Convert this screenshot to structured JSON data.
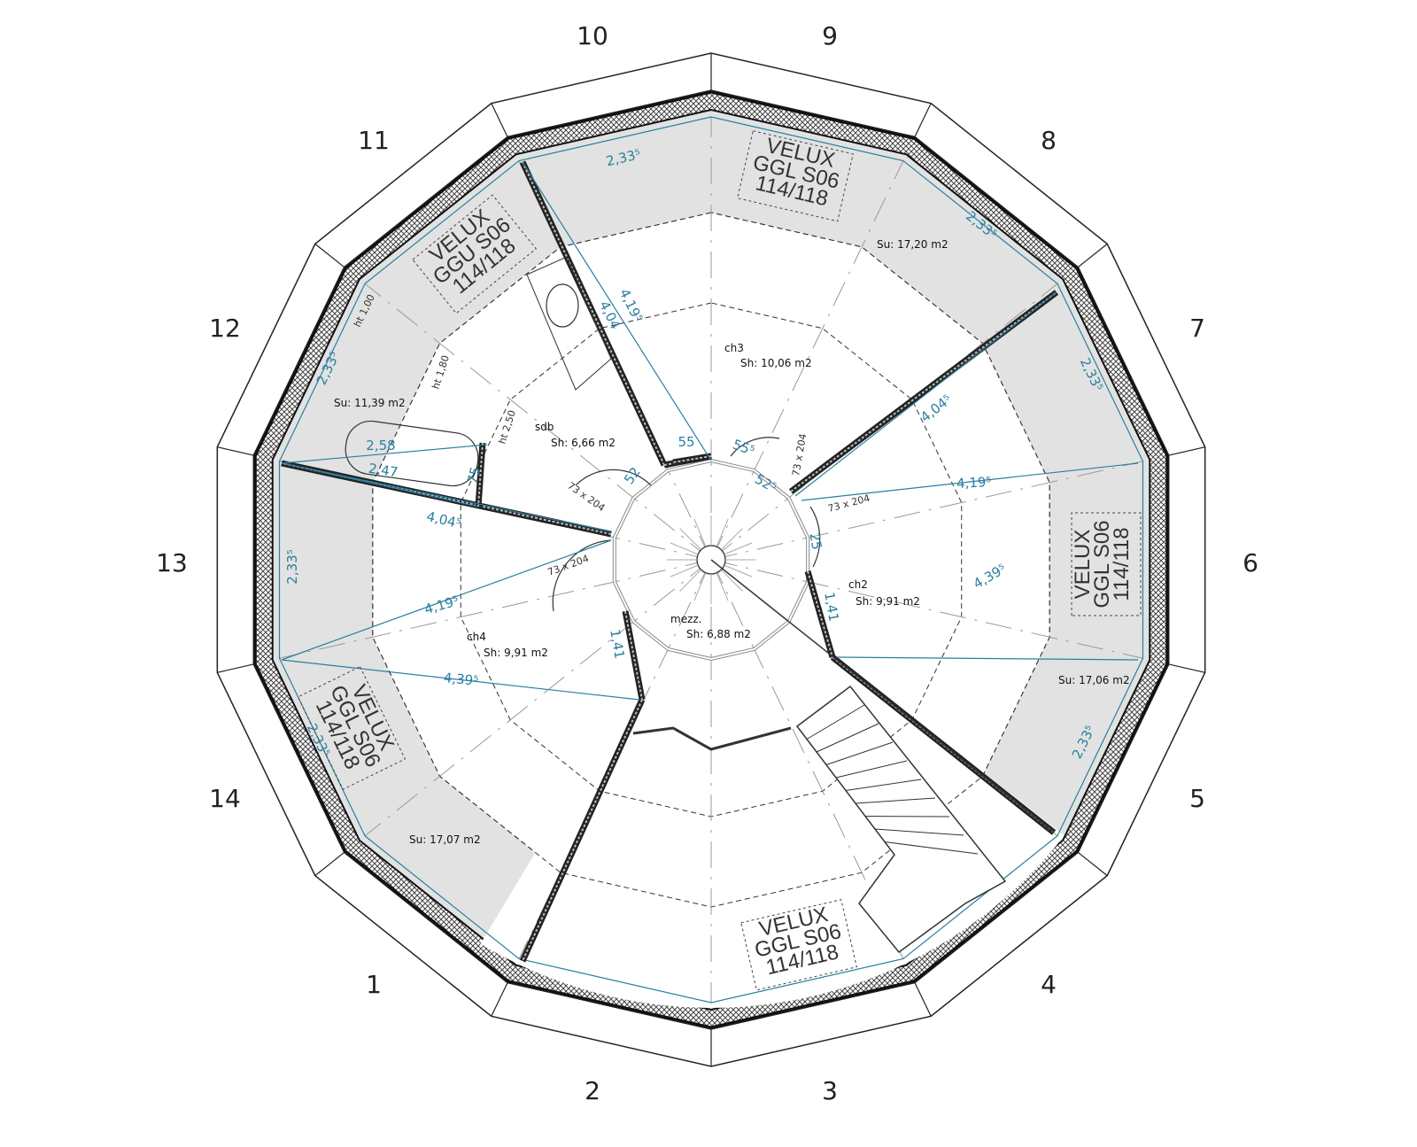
{
  "plan": {
    "segment_numbers": [
      "1",
      "2",
      "3",
      "4",
      "5",
      "6",
      "7",
      "8",
      "9",
      "10",
      "11",
      "12",
      "13",
      "14"
    ],
    "rooms": {
      "sdb": {
        "name": "sdb",
        "area": "Sh: 6,66 m2"
      },
      "ch3": {
        "name": "ch3",
        "area": "Sh: 10,06 m2"
      },
      "ch2": {
        "name": "ch2",
        "area": "Sh: 9,91 m2"
      },
      "ch4": {
        "name": "ch4",
        "area": "Sh: 9,91 m2"
      },
      "mezz": {
        "name": "mezz.",
        "area": "Sh: 6,88 m2"
      }
    },
    "usable_areas": {
      "nw": "Su: 11,39 m2",
      "ne": "Su: 17,20 m2",
      "e": "Su: 17,06 m2",
      "sw": "Su: 17,07 m2"
    },
    "heights": {
      "ht1": "ht 1,00",
      "ht2": "ht 1,80",
      "ht3": "ht 2,50"
    },
    "doors": {
      "d1": "73 x 204",
      "d2": "73 x 204",
      "d3": "73 x 204",
      "d4": "73 x 204"
    },
    "velux": [
      {
        "l1": "VELUX",
        "l2": "GGL S06",
        "l3": "114/118"
      },
      {
        "l1": "VELUX",
        "l2": "GGU S06",
        "l3": "114/118"
      },
      {
        "l1": "VELUX",
        "l2": "GGL S06",
        "l3": "114/118"
      },
      {
        "l1": "VELUX",
        "l2": "GGL S06",
        "l3": "114/118"
      },
      {
        "l1": "VELUX",
        "l2": "GGL S06",
        "l3": "114/118"
      }
    ],
    "dimensions": {
      "a233": "2,33⁵",
      "a419": "4,19⁵",
      "a404": "4,04⁵",
      "a404b": "4,04",
      "a439": "4,39⁵",
      "a258": "2,58",
      "a247": "2,47",
      "a55": "55",
      "a555": "55⁵",
      "a52": "52",
      "a525": "52⁵",
      "a75": "75",
      "a141": "1,41",
      "a25": "25"
    },
    "colors": {
      "dimension": "#2a7fa0",
      "low_zone": "#e2e2e2",
      "wall": "#333333"
    }
  }
}
